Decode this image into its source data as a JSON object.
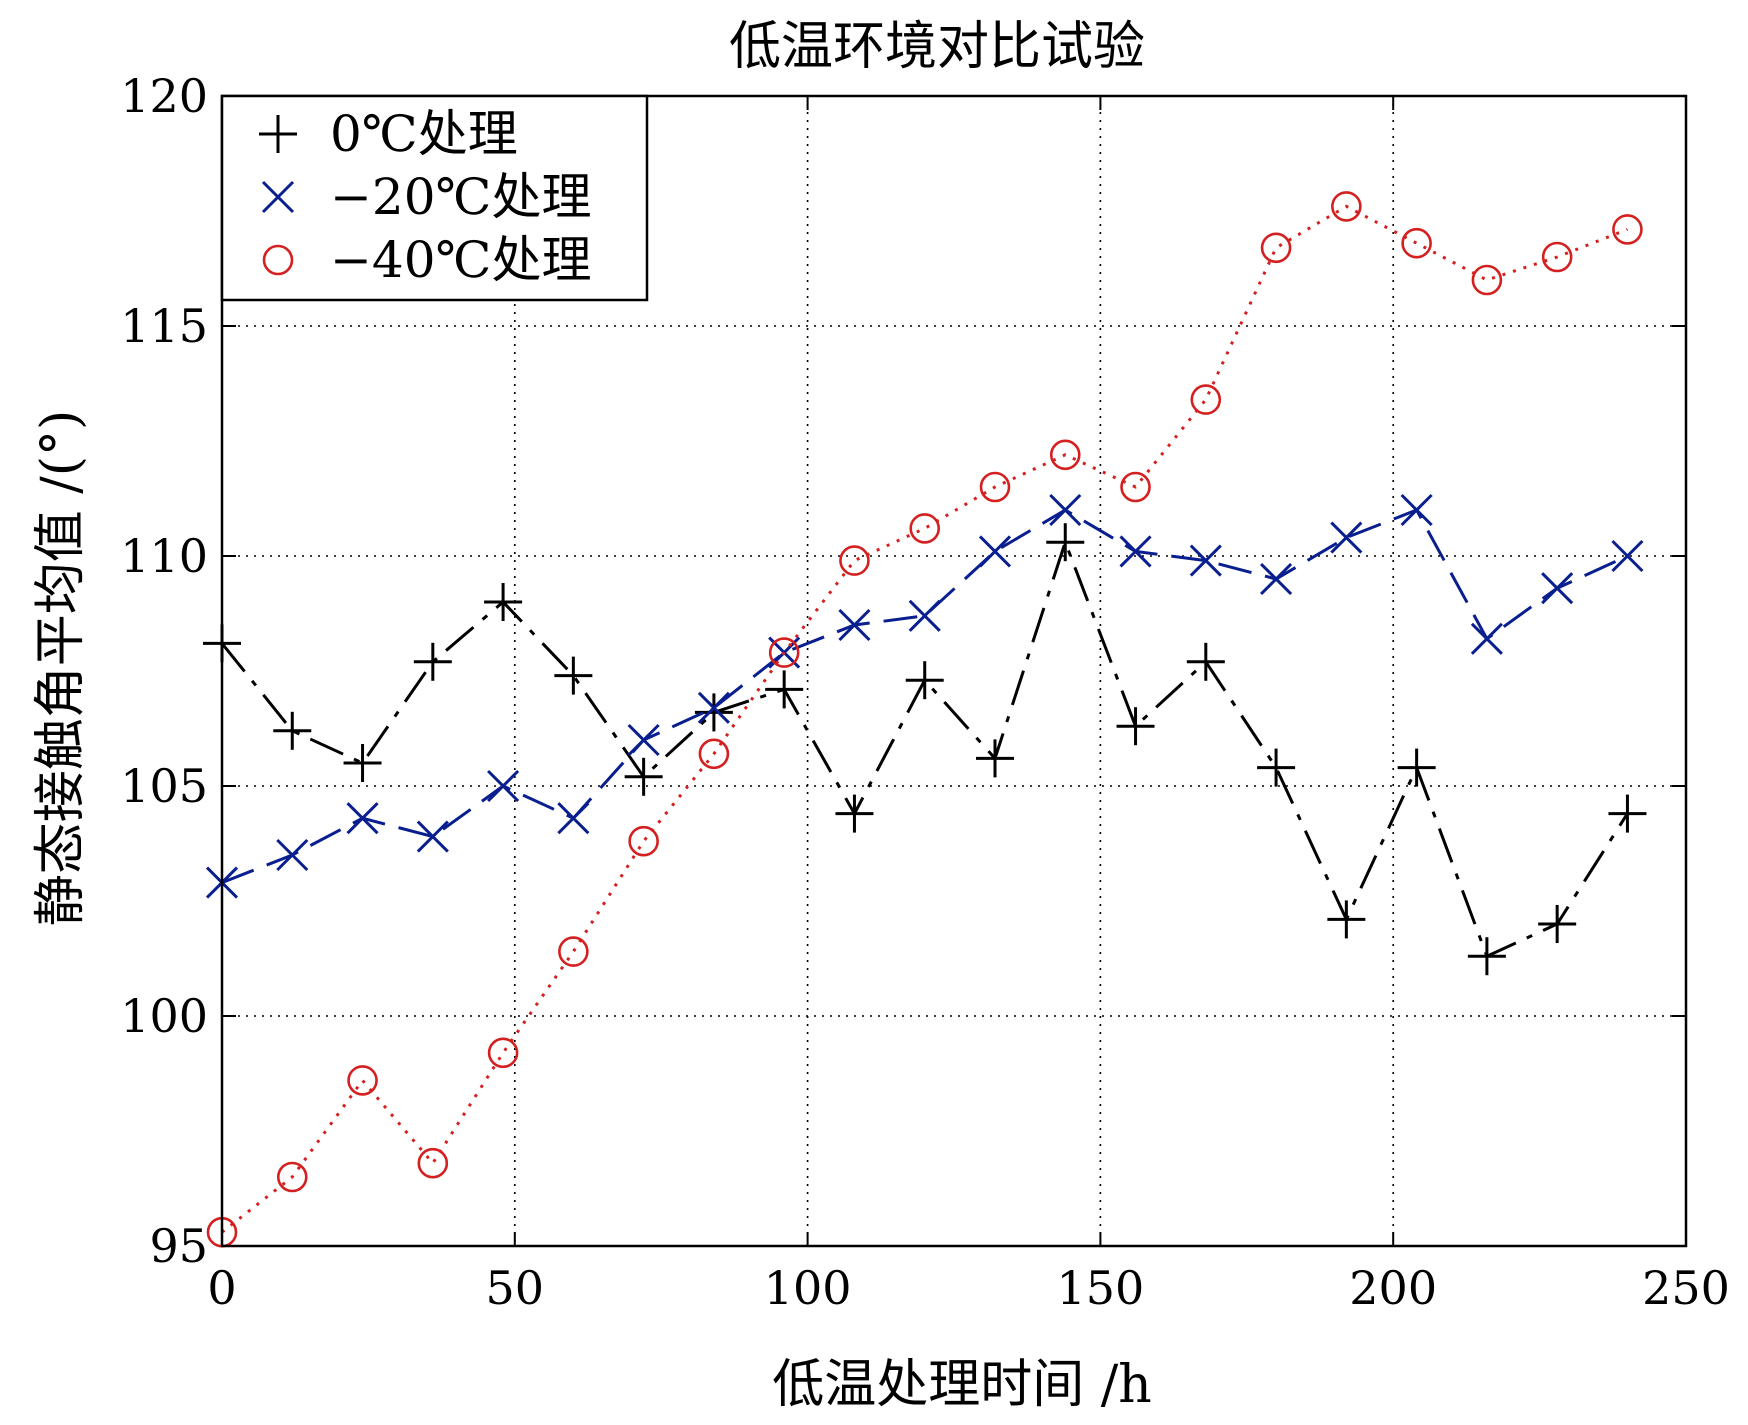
{
  "chart_data": {
    "type": "line",
    "title": "低温环境对比试验",
    "xlabel": "低温处理时间 /h",
    "ylabel": "静态接触角平均值 /(°)",
    "xlim": [
      0,
      250
    ],
    "ylim": [
      95,
      120
    ],
    "xticks": [
      0,
      50,
      100,
      150,
      200,
      250
    ],
    "yticks": [
      95,
      100,
      105,
      110,
      115,
      120
    ],
    "grid": true,
    "legend_position": "top-left",
    "x": [
      0,
      12,
      24,
      36,
      48,
      60,
      72,
      84,
      96,
      108,
      120,
      132,
      144,
      156,
      168,
      180,
      192,
      204,
      216,
      228,
      240
    ],
    "series": [
      {
        "name": "0℃处理",
        "marker": "plus",
        "line": "dash-dot",
        "color": "#000000",
        "values": [
          108.1,
          106.2,
          105.5,
          107.7,
          109.0,
          107.4,
          105.2,
          106.6,
          107.1,
          104.4,
          107.3,
          105.6,
          110.3,
          106.3,
          107.7,
          105.4,
          102.1,
          105.4,
          101.3,
          102.0,
          104.4
        ]
      },
      {
        "name": "−20℃处理",
        "marker": "x",
        "line": "dashed",
        "color": "#0a1f8f",
        "values": [
          102.9,
          103.5,
          104.3,
          103.9,
          105.0,
          104.3,
          106.0,
          106.7,
          107.9,
          108.5,
          108.7,
          110.1,
          111.0,
          110.1,
          109.9,
          109.5,
          110.4,
          111.0,
          108.2,
          109.3,
          110.0
        ]
      },
      {
        "name": "−40℃处理",
        "marker": "circle",
        "line": "dotted",
        "color": "#d42020",
        "values": [
          95.3,
          96.5,
          98.6,
          96.8,
          99.2,
          101.4,
          103.8,
          105.7,
          107.9,
          109.9,
          110.6,
          111.5,
          112.2,
          111.5,
          113.4,
          116.7,
          117.6,
          116.8,
          116.0,
          116.5,
          117.1
        ]
      }
    ]
  }
}
